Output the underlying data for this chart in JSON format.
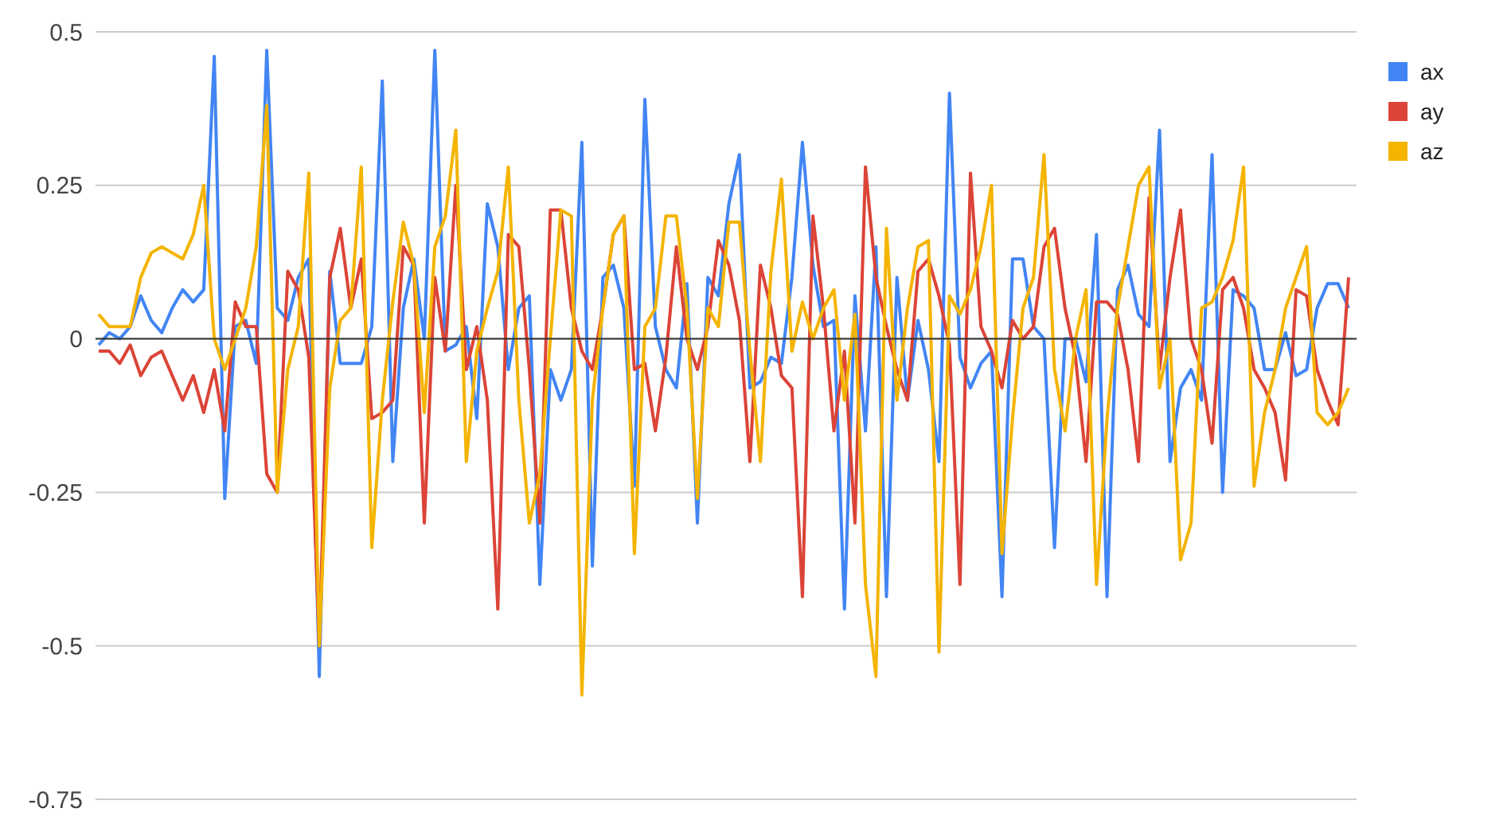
{
  "chart_data": {
    "type": "line",
    "categories": [
      null,
      null,
      null,
      null,
      null,
      null,
      null,
      null,
      null,
      null,
      null,
      null,
      null,
      null,
      null,
      null,
      null,
      null,
      null,
      null,
      null,
      null,
      null,
      null,
      null,
      null,
      null,
      null,
      null,
      null,
      null,
      null,
      null,
      null,
      null,
      null,
      null,
      null,
      null,
      null,
      null,
      null,
      null,
      null,
      null,
      null,
      null,
      null,
      null,
      null,
      null,
      null,
      null,
      null,
      null,
      null,
      null,
      null,
      null,
      null,
      null,
      null,
      null,
      null,
      null,
      null,
      null,
      null,
      null,
      null,
      null,
      null,
      null,
      null,
      null,
      null,
      null,
      null,
      null,
      null,
      null,
      null,
      null,
      null,
      null,
      null,
      null,
      null,
      null,
      null,
      null,
      null,
      null,
      null,
      null,
      null,
      null,
      null,
      null,
      null,
      null,
      null,
      null,
      null,
      null,
      null,
      null,
      null,
      null,
      null,
      null,
      null,
      null,
      null,
      null,
      null,
      null,
      null,
      null,
      null
    ],
    "series": [
      {
        "name": "ax",
        "color": "#4285f4",
        "values": [
          -0.01,
          0.01,
          0,
          0.02,
          0.07,
          0.03,
          0.01,
          0.05,
          0.08,
          0.06,
          0.08,
          0.46,
          -0.26,
          0.02,
          0.03,
          -0.04,
          0.47,
          0.05,
          0.03,
          0.1,
          0.13,
          -0.55,
          0.11,
          -0.04,
          -0.04,
          -0.04,
          0.02,
          0.42,
          -0.2,
          0.05,
          0.13,
          0,
          0.47,
          -0.02,
          -0.01,
          0.02,
          -0.13,
          0.22,
          0.15,
          -0.05,
          0.05,
          0.07,
          -0.4,
          -0.05,
          -0.1,
          -0.05,
          0.32,
          -0.37,
          0.1,
          0.12,
          0.05,
          -0.24,
          0.39,
          0.02,
          -0.05,
          -0.08,
          0.09,
          -0.3,
          0.1,
          0.07,
          0.22,
          0.3,
          -0.08,
          -0.07,
          -0.03,
          -0.04,
          0.1,
          0.32,
          0.12,
          0.02,
          0.03,
          -0.44,
          0.07,
          -0.15,
          0.15,
          -0.42,
          0.1,
          -0.1,
          0.03,
          -0.05,
          -0.2,
          0.4,
          -0.03,
          -0.08,
          -0.04,
          -0.02,
          -0.42,
          0.13,
          0.13,
          0.02,
          0,
          -0.34,
          0,
          0,
          -0.07,
          0.17,
          -0.42,
          0.08,
          0.12,
          0.04,
          0.02,
          0.34,
          -0.2,
          -0.08,
          -0.05,
          -0.1,
          0.3,
          -0.25,
          0.08,
          0.07,
          0.05,
          -0.05,
          -0.05,
          0.01,
          -0.06,
          -0.05,
          0.05,
          0.09,
          0.09,
          0.05
        ]
      },
      {
        "name": "ay",
        "color": "#db4437",
        "values": [
          -0.02,
          -0.02,
          -0.04,
          -0.01,
          -0.06,
          -0.03,
          -0.02,
          -0.06,
          -0.1,
          -0.06,
          -0.12,
          -0.05,
          -0.15,
          0.06,
          0.02,
          0.02,
          -0.22,
          -0.25,
          0.11,
          0.08,
          -0.03,
          -0.5,
          0.1,
          0.18,
          0.05,
          0.13,
          -0.13,
          -0.12,
          -0.1,
          0.15,
          0.12,
          -0.3,
          0.1,
          -0.02,
          0.25,
          -0.05,
          0.02,
          -0.1,
          -0.44,
          0.17,
          0.15,
          -0.05,
          -0.3,
          0.21,
          0.21,
          0.05,
          -0.02,
          -0.05,
          0.05,
          0.17,
          0.2,
          -0.05,
          -0.04,
          -0.15,
          -0.03,
          0.15,
          0,
          -0.05,
          0.02,
          0.16,
          0.12,
          0.03,
          -0.2,
          0.12,
          0.05,
          -0.06,
          -0.08,
          -0.42,
          0.2,
          0.05,
          -0.15,
          -0.02,
          -0.3,
          0.28,
          0.1,
          0.02,
          -0.05,
          -0.1,
          0.11,
          0.13,
          0.07,
          -0.01,
          -0.4,
          0.27,
          0.02,
          -0.02,
          -0.08,
          0.03,
          0,
          0.02,
          0.15,
          0.18,
          0.05,
          -0.03,
          -0.2,
          0.06,
          0.06,
          0.04,
          -0.05,
          -0.2,
          0.23,
          -0.05,
          0.1,
          0.21,
          0,
          -0.05,
          -0.17,
          0.08,
          0.1,
          0.05,
          -0.05,
          -0.08,
          -0.12,
          -0.23,
          0.08,
          0.07,
          -0.05,
          -0.1,
          -0.14,
          0.1
        ]
      },
      {
        "name": "az",
        "color": "#f4b400",
        "values": [
          0.04,
          0.02,
          0.02,
          0.02,
          0.1,
          0.14,
          0.15,
          0.14,
          0.13,
          0.17,
          0.25,
          0,
          -0.05,
          0,
          0.05,
          0.15,
          0.38,
          -0.25,
          -0.05,
          0.02,
          0.27,
          -0.5,
          -0.08,
          0.03,
          0.05,
          0.28,
          -0.34,
          -0.1,
          0.06,
          0.19,
          0.12,
          -0.12,
          0.15,
          0.2,
          0.34,
          -0.2,
          -0.02,
          0.05,
          0.11,
          0.28,
          -0.1,
          -0.3,
          -0.22,
          0,
          0.21,
          0.2,
          -0.58,
          -0.1,
          0.05,
          0.17,
          0.2,
          -0.35,
          0.02,
          0.05,
          0.2,
          0.2,
          0.05,
          -0.26,
          0.05,
          0.02,
          0.19,
          0.19,
          -0.02,
          -0.2,
          0.11,
          0.26,
          -0.02,
          0.06,
          0,
          0.05,
          0.08,
          -0.1,
          0.04,
          -0.4,
          -0.55,
          0.18,
          -0.1,
          0.05,
          0.15,
          0.16,
          -0.51,
          0.07,
          0.04,
          0.08,
          0.15,
          0.25,
          -0.35,
          -0.13,
          0.05,
          0.1,
          0.3,
          -0.05,
          -0.15,
          0,
          0.08,
          -0.4,
          -0.13,
          0.05,
          0.15,
          0.25,
          0.28,
          -0.08,
          0,
          -0.36,
          -0.3,
          0.05,
          0.06,
          0.1,
          0.16,
          0.28,
          -0.24,
          -0.12,
          -0.05,
          0.05,
          0.1,
          0.15,
          -0.12,
          -0.14,
          -0.12,
          -0.08
        ]
      }
    ],
    "ylim": [
      -0.75,
      0.5
    ],
    "yticks": [
      0.5,
      0.25,
      0,
      -0.25,
      -0.5,
      -0.75
    ],
    "grid": "y",
    "legend": "top right",
    "tick_labels": "y"
  }
}
